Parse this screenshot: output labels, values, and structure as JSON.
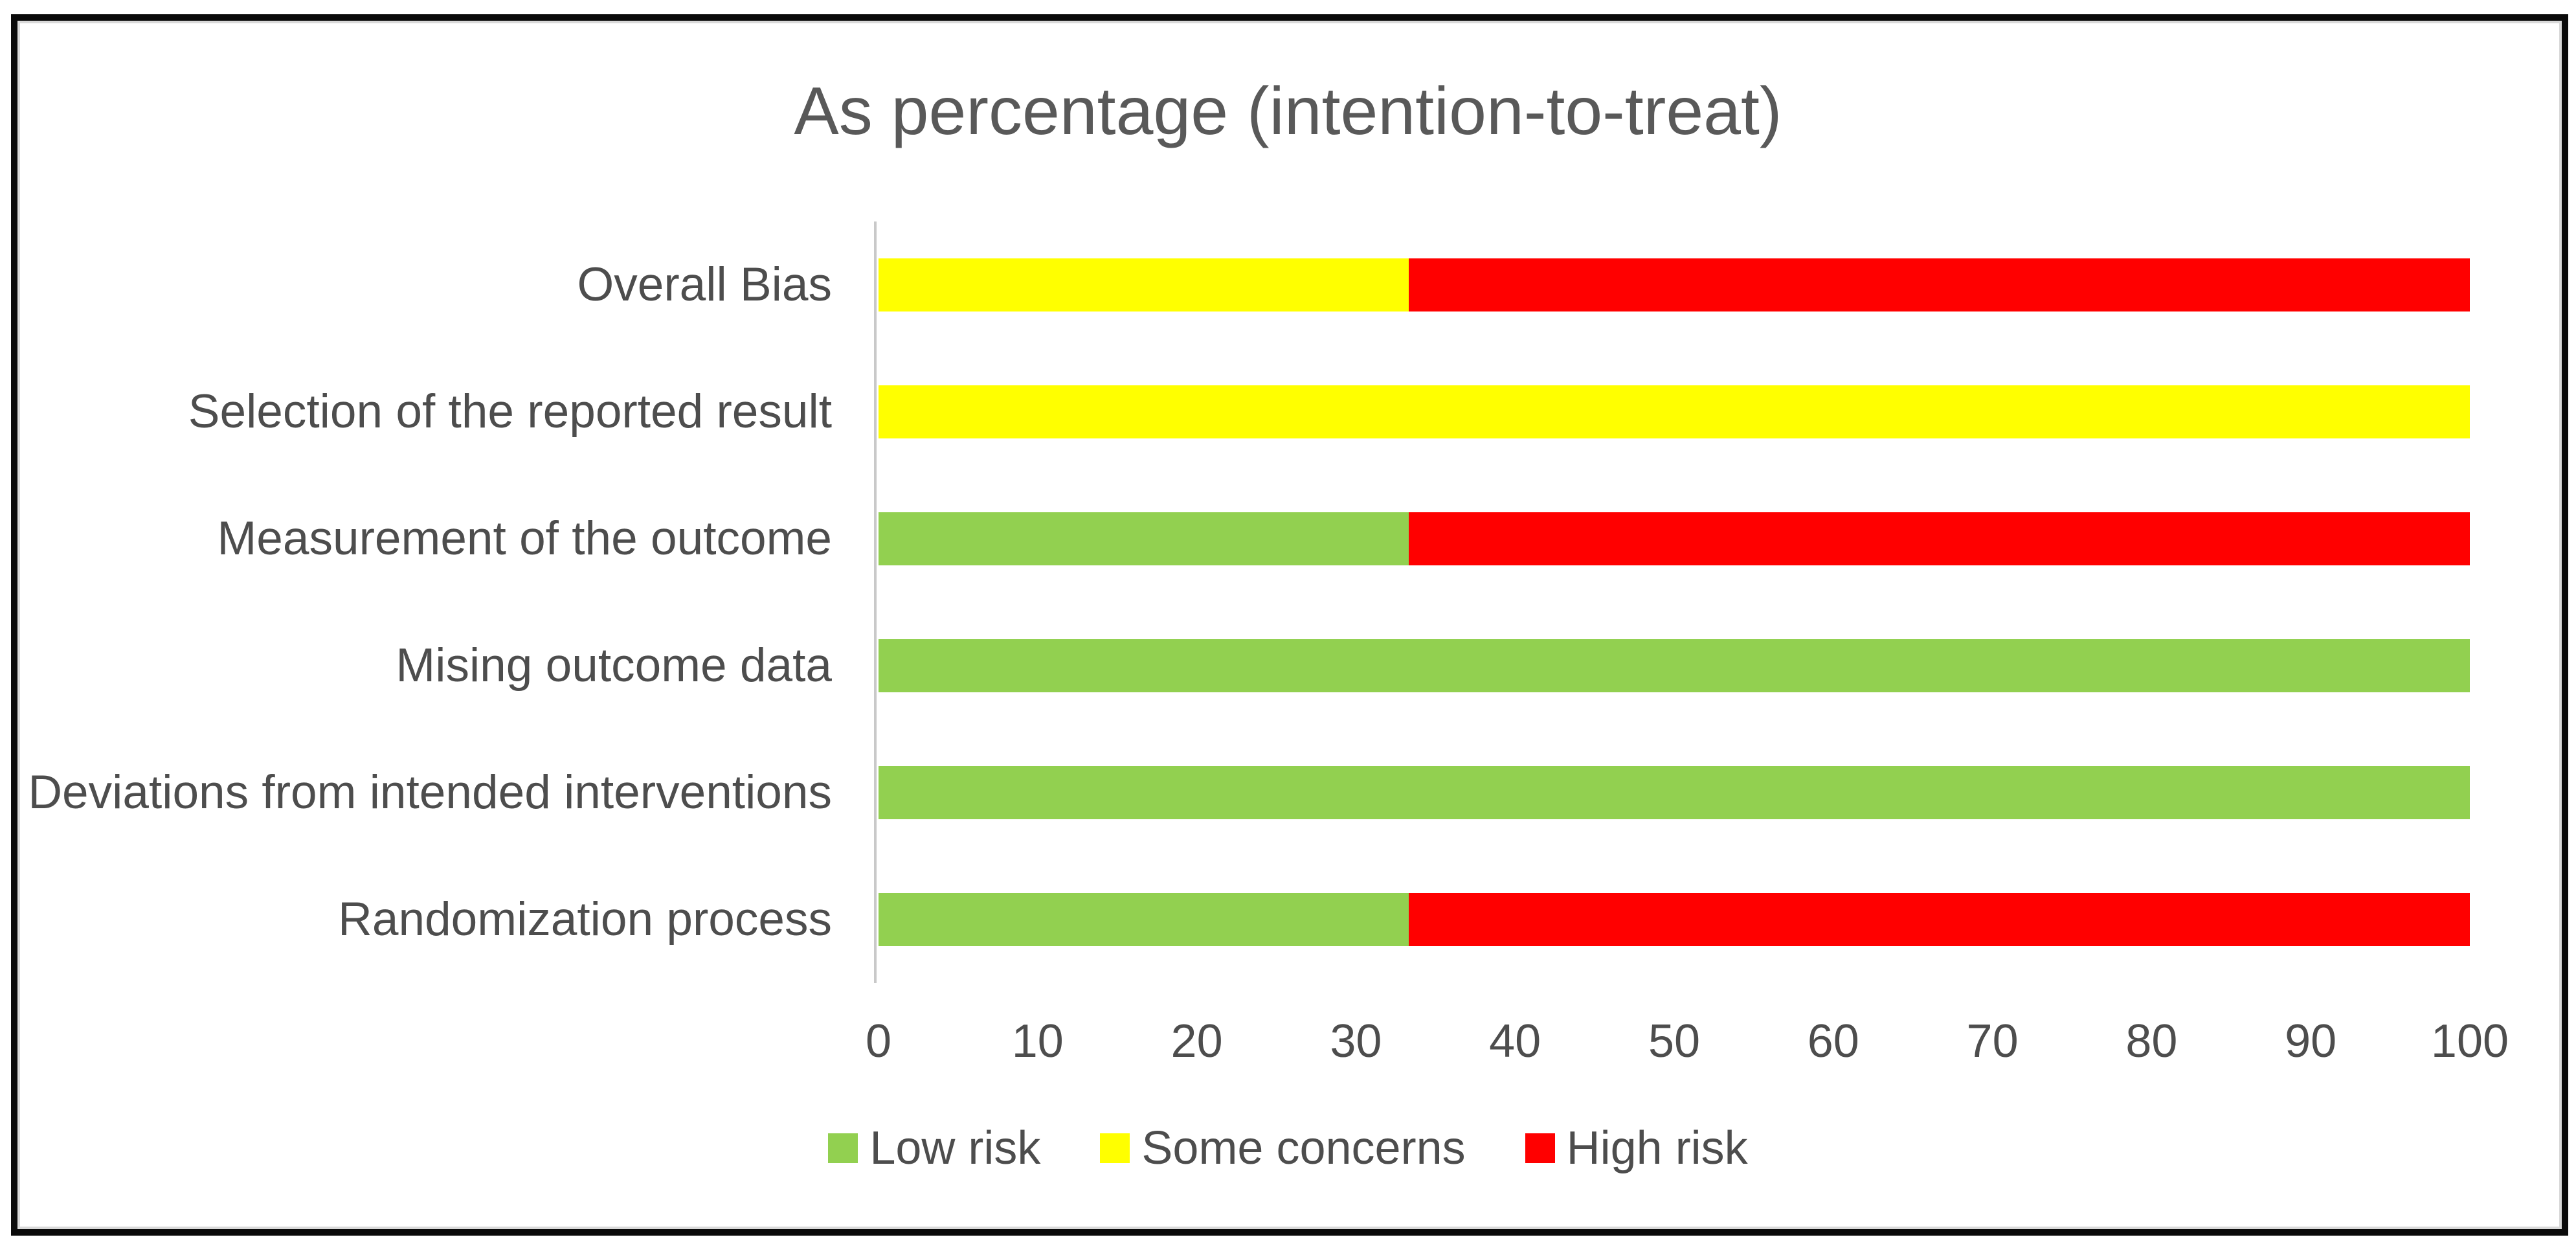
{
  "chart_data": {
    "type": "bar",
    "orientation": "horizontal",
    "stacked": true,
    "title": "As percentage (intention-to-treat)",
    "categories": [
      "Overall Bias",
      "Selection of the reported result",
      "Measurement of the outcome",
      "Mising outcome data",
      "Deviations from intended interventions",
      "Randomization process"
    ],
    "categories_order": "top-to-bottom",
    "series": [
      {
        "name": "Low risk",
        "color": "#92D050",
        "values": [
          0,
          0,
          33.3,
          100,
          100,
          33.3
        ]
      },
      {
        "name": "Some concerns",
        "color": "#FFFF00",
        "values": [
          33.3,
          100,
          0,
          0,
          0,
          0
        ]
      },
      {
        "name": "High risk",
        "color": "#FF0000",
        "values": [
          66.7,
          0,
          66.7,
          0,
          0,
          66.7
        ]
      }
    ],
    "xlim": [
      0,
      100
    ],
    "x_ticks": [
      0,
      10,
      20,
      30,
      40,
      50,
      60,
      70,
      80,
      90,
      100
    ],
    "xlabel": "",
    "ylabel": "",
    "grid": false,
    "legend_position": "bottom"
  },
  "style_colors": {
    "frame_border": "#0a0a0a",
    "frame_inner_edge": "#d9d9d9",
    "axis_line": "#c9c9c9",
    "title_text": "#595959",
    "label_text": "#4d4d4d"
  }
}
